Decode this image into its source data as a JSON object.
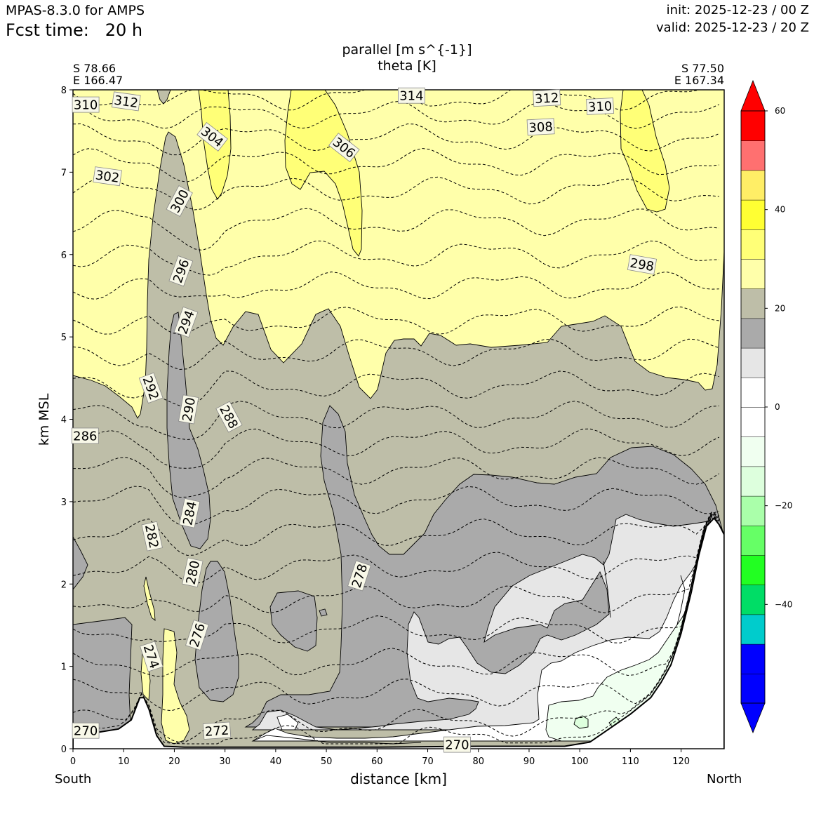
{
  "header": {
    "model": "MPAS-8.3.0 for AMPS",
    "fcst_label": "Fcst time:",
    "fcst_value": "20 h",
    "init": "init: 2025-12-23 / 00 Z",
    "valid": "valid: 2025-12-23 / 20 Z"
  },
  "chart_data": {
    "type": "cross-section",
    "title_lines": [
      "parallel [m s^{-1}]",
      "theta [K]"
    ],
    "xlabel": "distance [km]",
    "ylabel": "km MSL",
    "xlim": [
      0,
      128.5
    ],
    "ylim": [
      0,
      8
    ],
    "x_ticks": [
      0,
      10,
      20,
      30,
      40,
      50,
      60,
      70,
      80,
      90,
      100,
      110,
      120
    ],
    "y_ticks": [
      0,
      1,
      2,
      3,
      4,
      5,
      6,
      7,
      8
    ],
    "endpoints": {
      "left": {
        "lat": "S 78.66",
        "lon": "E 166.47",
        "direction": "South"
      },
      "right": {
        "lat": "S 77.50",
        "lon": "E 167.34",
        "direction": "North"
      }
    },
    "colorbar": {
      "colors": [
        "#0000ff",
        "#0000ff",
        "#0000ff",
        "#00cccc",
        "#00dd66",
        "#22ff22",
        "#66ff66",
        "#aaffaa",
        "#ddffdd",
        "#f0fff0",
        "#ffffff",
        "#ffffff",
        "#e6e6e6",
        "#aaaaaa",
        "#bebea8",
        "#ffffaa",
        "#ffff77",
        "#ffff33",
        "#ffee66",
        "#ff7070",
        "#ff0000",
        "#ff0000"
      ],
      "tick_values": [
        -40,
        -20,
        0,
        20,
        40,
        60
      ],
      "tick_labels": [
        "−40",
        "−20",
        "0",
        "20",
        "40",
        "60"
      ],
      "extend": "both"
    },
    "theta_contour_levels": [
      270,
      272,
      274,
      276,
      278,
      280,
      282,
      284,
      286,
      288,
      290,
      292,
      294,
      296,
      298,
      300,
      302,
      304,
      306,
      308,
      310,
      312,
      314
    ],
    "theta_labels": [
      {
        "text": "310",
        "x": 2.5,
        "y": 7.82,
        "rot": 0
      },
      {
        "text": "312",
        "x": 10.5,
        "y": 7.86,
        "rot": 8
      },
      {
        "text": "304",
        "x": 27.5,
        "y": 7.43,
        "rot": 38
      },
      {
        "text": "306",
        "x": 53.5,
        "y": 7.3,
        "rot": 38
      },
      {
        "text": "314",
        "x": 66.8,
        "y": 7.93,
        "rot": 0
      },
      {
        "text": "312",
        "x": 93.5,
        "y": 7.9,
        "rot": -3
      },
      {
        "text": "310",
        "x": 104,
        "y": 7.8,
        "rot": -3
      },
      {
        "text": "308",
        "x": 92.3,
        "y": 7.55,
        "rot": -3
      },
      {
        "text": "302",
        "x": 6.8,
        "y": 6.95,
        "rot": 8
      },
      {
        "text": "300",
        "x": 21,
        "y": 6.65,
        "rot": -62
      },
      {
        "text": "298",
        "x": 112.3,
        "y": 5.88,
        "rot": 10
      },
      {
        "text": "296",
        "x": 21.3,
        "y": 5.8,
        "rot": -70
      },
      {
        "text": "294",
        "x": 22.3,
        "y": 5.18,
        "rot": -70
      },
      {
        "text": "292",
        "x": 15.4,
        "y": 4.38,
        "rot": 70
      },
      {
        "text": "290",
        "x": 22.8,
        "y": 4.12,
        "rot": -80
      },
      {
        "text": "288",
        "x": 30.8,
        "y": 4.03,
        "rot": 62
      },
      {
        "text": "286",
        "x": 2.4,
        "y": 3.8,
        "rot": 0
      },
      {
        "text": "284",
        "x": 23,
        "y": 2.86,
        "rot": -78
      },
      {
        "text": "282",
        "x": 15.6,
        "y": 2.58,
        "rot": 78
      },
      {
        "text": "280",
        "x": 23.6,
        "y": 2.14,
        "rot": -78
      },
      {
        "text": "278",
        "x": 56.5,
        "y": 2.1,
        "rot": -72
      },
      {
        "text": "276",
        "x": 24.5,
        "y": 1.38,
        "rot": -72
      },
      {
        "text": "274",
        "x": 15.5,
        "y": 1.12,
        "rot": 72
      },
      {
        "text": "272",
        "x": 28.4,
        "y": 0.22,
        "rot": -4
      },
      {
        "text": "270",
        "x": 2.5,
        "y": 0.22,
        "rot": 0
      },
      {
        "text": "270",
        "x": 75.8,
        "y": 0.05,
        "rot": 0
      }
    ],
    "shading_fields": [
      {
        "level": "20 to 26 m/s",
        "color": "#bebea8"
      },
      {
        "level": "26 to 32 m/s",
        "color": "#ffffaa"
      },
      {
        "level": "32 to 38 m/s",
        "color": "#ffff77"
      },
      {
        "level": "14 to 20 m/s",
        "color": "#aaaaaa"
      },
      {
        "level": "8 to 14 m/s",
        "color": "#e6e6e6"
      },
      {
        "level": "0 to 8 m/s",
        "color": "#ffffff"
      },
      {
        "level": "-8 to -2 m/s",
        "color": "#f0fff0"
      },
      {
        "level": "-14 to -8 m/s",
        "color": "#ddffdd"
      }
    ],
    "terrain_height_km": [
      [
        0,
        0.18
      ],
      [
        5,
        0.2
      ],
      [
        9,
        0.24
      ],
      [
        11.5,
        0.35
      ],
      [
        13.2,
        0.62
      ],
      [
        14,
        0.62
      ],
      [
        15,
        0.48
      ],
      [
        16.5,
        0.16
      ],
      [
        18,
        0.03
      ],
      [
        22,
        0.02
      ],
      [
        40,
        0.02
      ],
      [
        60,
        0.02
      ],
      [
        80,
        0.03
      ],
      [
        97,
        0.03
      ],
      [
        102,
        0.08
      ],
      [
        106,
        0.25
      ],
      [
        110,
        0.42
      ],
      [
        114,
        0.62
      ],
      [
        116,
        0.8
      ],
      [
        118,
        1.02
      ],
      [
        120,
        1.4
      ],
      [
        122,
        1.9
      ],
      [
        123.5,
        2.35
      ],
      [
        125,
        2.7
      ],
      [
        126.5,
        2.8
      ],
      [
        127.5,
        2.72
      ],
      [
        128.5,
        2.6
      ]
    ]
  }
}
